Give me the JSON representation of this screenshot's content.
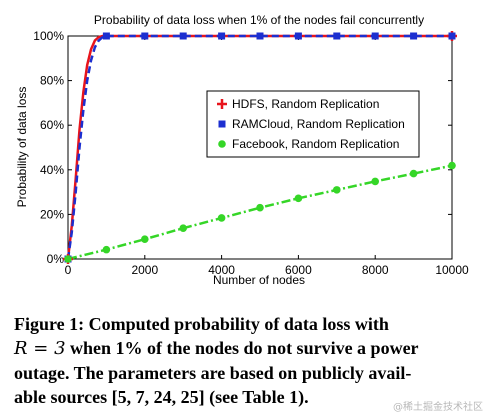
{
  "chart_data": {
    "type": "line",
    "title": "Probability of data loss when 1% of the nodes fail concurrently",
    "xlabel": "Number of nodes",
    "ylabel": "Probability of data loss",
    "xlim": [
      0,
      10000
    ],
    "ylim": [
      0,
      100
    ],
    "x_ticks": [
      "0",
      "2000",
      "4000",
      "6000",
      "8000",
      "10000"
    ],
    "y_ticks": [
      "0%",
      "20%",
      "40%",
      "60%",
      "80%",
      "100%"
    ],
    "grid": false,
    "legend_position": "center-right",
    "series": [
      {
        "name": "HDFS, Random Replication",
        "color": "#e8141c",
        "line_style": "solid",
        "marker": "plus",
        "x": [
          0,
          100,
          200,
          300,
          400,
          500,
          600,
          700,
          800,
          900,
          1000,
          2000,
          3000,
          4000,
          5000,
          6000,
          7000,
          8000,
          9000,
          10000
        ],
        "y": [
          0,
          15,
          36,
          58,
          75,
          87,
          94,
          98,
          99.5,
          100,
          100,
          100,
          100,
          100,
          100,
          100,
          100,
          100,
          100,
          100
        ],
        "markers_x": [
          0,
          10000
        ]
      },
      {
        "name": "RAMCloud, Random Replication",
        "color": "#1c2fd0",
        "line_style": "dashed",
        "marker": "square",
        "x": [
          0,
          100,
          200,
          300,
          400,
          500,
          600,
          700,
          800,
          900,
          1000,
          2000,
          3000,
          4000,
          5000,
          6000,
          7000,
          8000,
          9000,
          10000
        ],
        "y": [
          0,
          12,
          30,
          50,
          67,
          80,
          89,
          95,
          98,
          99.5,
          100,
          100,
          100,
          100,
          100,
          100,
          100,
          100,
          100,
          100
        ],
        "markers_x": [
          0,
          1000,
          2000,
          3000,
          4000,
          5000,
          6000,
          7000,
          8000,
          9000,
          10000
        ]
      },
      {
        "name": "Facebook, Random Replication",
        "color": "#35d627",
        "line_style": "dash-dot",
        "marker": "circle",
        "x": [
          0,
          1000,
          2000,
          3000,
          4000,
          5000,
          6000,
          7000,
          8000,
          9000,
          10000
        ],
        "y": [
          0,
          4.2,
          8.9,
          13.8,
          18.4,
          23,
          27.2,
          31,
          34.8,
          38.3,
          41.9
        ],
        "markers_x": [
          0,
          1000,
          2000,
          3000,
          4000,
          5000,
          6000,
          7000,
          8000,
          9000,
          10000
        ]
      }
    ]
  },
  "caption": {
    "line1": "Figure 1: Computed probability of data loss with",
    "line2_math": "R = 3",
    "line2_rest": " when 1% of the nodes do not survive a power",
    "line3": "outage. The parameters are based on publicly avail-",
    "line4": "able sources [5, 7, 24, 25] (see Table 1)."
  },
  "watermark": "@稀土掘金技术社区"
}
